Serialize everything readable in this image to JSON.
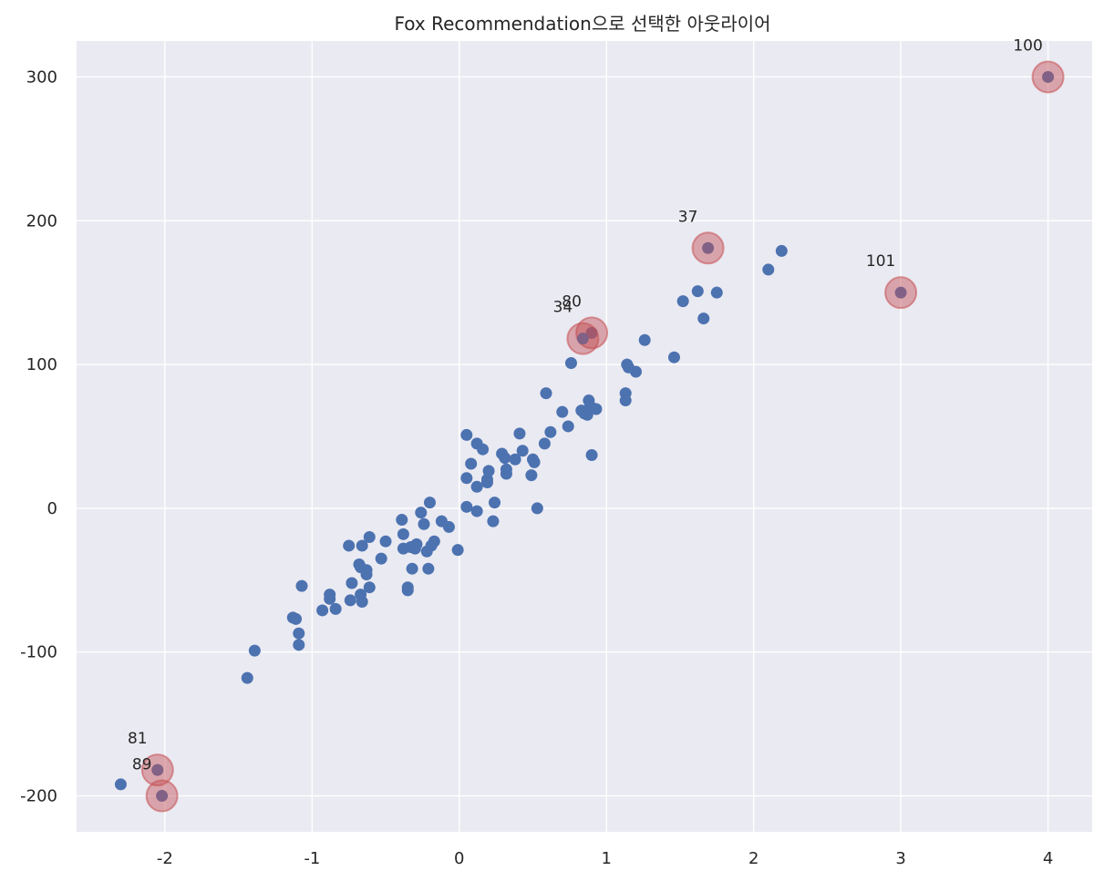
{
  "chart_data": {
    "type": "scatter",
    "title": "Fox Recommendation으로 선택한 아웃라이어",
    "xlabel": "",
    "ylabel": "",
    "xlim": [
      -2.6,
      4.3
    ],
    "ylim": [
      -225,
      325
    ],
    "grid": true,
    "background": "#eaeaf2",
    "point_color": "#4c72b0",
    "outlier_color": "#c44e52",
    "x_ticks": [
      -2,
      -1,
      0,
      1,
      2,
      3,
      4
    ],
    "x_tick_labels": [
      "-2",
      "-1",
      "0",
      "1",
      "2",
      "3",
      "4"
    ],
    "y_ticks": [
      -200,
      -100,
      0,
      100,
      200,
      300
    ],
    "y_tick_labels": [
      "-200",
      "-100",
      "0",
      "100",
      "200",
      "300"
    ],
    "points": [
      [
        -2.3,
        -192
      ],
      [
        -1.44,
        -118
      ],
      [
        -1.39,
        -99
      ],
      [
        -1.13,
        -76
      ],
      [
        -1.11,
        -77
      ],
      [
        -1.09,
        -87
      ],
      [
        -1.09,
        -95
      ],
      [
        -1.07,
        -54
      ],
      [
        -0.93,
        -71
      ],
      [
        -0.88,
        -60
      ],
      [
        -0.88,
        -63
      ],
      [
        -0.84,
        -70
      ],
      [
        -0.75,
        -26
      ],
      [
        -0.74,
        -64
      ],
      [
        -0.73,
        -52
      ],
      [
        -0.68,
        -39
      ],
      [
        -0.67,
        -41
      ],
      [
        -0.67,
        -60
      ],
      [
        -0.66,
        -26
      ],
      [
        -0.66,
        -65
      ],
      [
        -0.63,
        -43
      ],
      [
        -0.63,
        -46
      ],
      [
        -0.61,
        -55
      ],
      [
        -0.61,
        -20
      ],
      [
        -0.53,
        -35
      ],
      [
        -0.5,
        -23
      ],
      [
        -0.39,
        -8
      ],
      [
        -0.38,
        -18
      ],
      [
        -0.38,
        -28
      ],
      [
        -0.35,
        -55
      ],
      [
        -0.35,
        -57
      ],
      [
        -0.33,
        -27
      ],
      [
        -0.32,
        -42
      ],
      [
        -0.3,
        -28
      ],
      [
        -0.29,
        -25
      ],
      [
        -0.26,
        -3
      ],
      [
        -0.24,
        -11
      ],
      [
        -0.22,
        -30
      ],
      [
        -0.21,
        -42
      ],
      [
        -0.2,
        4
      ],
      [
        -0.19,
        -26
      ],
      [
        -0.17,
        -23
      ],
      [
        -0.12,
        -9
      ],
      [
        -0.07,
        -13
      ],
      [
        -0.01,
        -29
      ],
      [
        0.05,
        51
      ],
      [
        0.05,
        21
      ],
      [
        0.05,
        1
      ],
      [
        0.08,
        31
      ],
      [
        0.12,
        15
      ],
      [
        0.12,
        45
      ],
      [
        0.12,
        -2
      ],
      [
        0.16,
        41
      ],
      [
        0.19,
        20
      ],
      [
        0.19,
        18
      ],
      [
        0.2,
        26
      ],
      [
        0.23,
        -9
      ],
      [
        0.24,
        4
      ],
      [
        0.29,
        38
      ],
      [
        0.31,
        35
      ],
      [
        0.32,
        24
      ],
      [
        0.32,
        27
      ],
      [
        0.38,
        34
      ],
      [
        0.41,
        52
      ],
      [
        0.43,
        40
      ],
      [
        0.49,
        23
      ],
      [
        0.5,
        34
      ],
      [
        0.51,
        32
      ],
      [
        0.53,
        0
      ],
      [
        0.58,
        45
      ],
      [
        0.59,
        80
      ],
      [
        0.62,
        53
      ],
      [
        0.7,
        67
      ],
      [
        0.74,
        57
      ],
      [
        0.76,
        101
      ],
      [
        0.83,
        68
      ],
      [
        0.85,
        66
      ],
      [
        0.87,
        65
      ],
      [
        0.88,
        75
      ],
      [
        0.89,
        71
      ],
      [
        0.9,
        37
      ],
      [
        0.93,
        69
      ],
      [
        1.13,
        80
      ],
      [
        1.13,
        75
      ],
      [
        1.14,
        100
      ],
      [
        1.15,
        98
      ],
      [
        1.2,
        95
      ],
      [
        1.26,
        117
      ],
      [
        1.46,
        105
      ],
      [
        1.52,
        144
      ],
      [
        1.62,
        151
      ],
      [
        1.66,
        132
      ],
      [
        1.75,
        150
      ],
      [
        2.1,
        166
      ],
      [
        2.19,
        179
      ]
    ],
    "outliers": [
      {
        "id": "100",
        "x": 4.0,
        "y": 300
      },
      {
        "id": "37",
        "x": 1.69,
        "y": 181
      },
      {
        "id": "101",
        "x": 3.0,
        "y": 150
      },
      {
        "id": "80",
        "x": 0.9,
        "y": 122
      },
      {
        "id": "34",
        "x": 0.84,
        "y": 118
      },
      {
        "id": "81",
        "x": -2.05,
        "y": -182
      },
      {
        "id": "89",
        "x": -2.02,
        "y": -200
      }
    ]
  }
}
